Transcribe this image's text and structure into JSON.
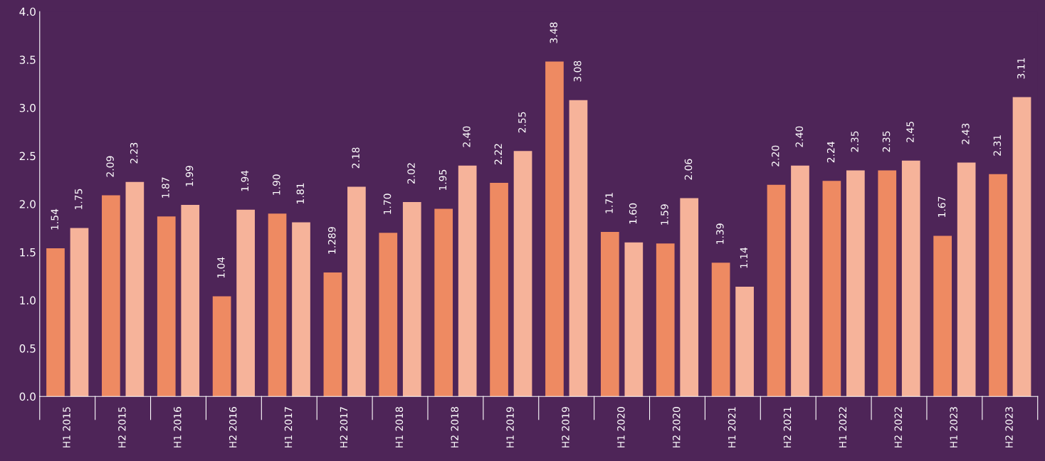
{
  "chart_data": {
    "type": "bar",
    "categories": [
      "H1 2015",
      "H2 2015",
      "H1 2016",
      "H2 2016",
      "H1 2017",
      "H2 2017",
      "H1 2018",
      "H2 2018",
      "H1 2019",
      "H2 2019",
      "H1 2020",
      "H2 2020",
      "H1 2021",
      "H2 2021",
      "H1 2022",
      "H2 2022",
      "H1 2023",
      "H2 2023"
    ],
    "series": [
      {
        "color": "#ee8a62",
        "values": [
          1.54,
          2.09,
          1.87,
          1.04,
          1.9,
          1.289,
          1.7,
          1.95,
          2.22,
          3.48,
          1.71,
          1.59,
          1.39,
          2.2,
          2.24,
          2.35,
          1.67,
          2.31
        ],
        "value_labels": [
          "1.54",
          "2.09",
          "1.87",
          "1.04",
          "1.90",
          "1.289",
          "1.70",
          "1.95",
          "2.22",
          "3.48",
          "1.71",
          "1.59",
          "1.39",
          "2.20",
          "2.24",
          "2.35",
          "1.67",
          "2.31"
        ]
      },
      {
        "color": "#f6b39a",
        "values": [
          1.75,
          2.23,
          1.99,
          1.94,
          1.81,
          2.18,
          2.02,
          2.4,
          2.55,
          3.08,
          1.6,
          2.06,
          1.14,
          2.4,
          2.35,
          2.45,
          2.43,
          3.11
        ],
        "value_labels": [
          "1.75",
          "2.23",
          "1.99",
          "1.94",
          "1.81",
          "2.18",
          "2.02",
          "2.40",
          "2.55",
          "3.08",
          "1.60",
          "2.06",
          "1.14",
          "2.40",
          "2.35",
          "2.45",
          "2.43",
          "3.11"
        ]
      }
    ],
    "ylim": [
      0,
      4
    ],
    "yticks": [
      {
        "value": 0,
        "label": "0.0"
      },
      {
        "value": 0.5,
        "label": "0.5"
      },
      {
        "value": 1,
        "label": "1.0"
      },
      {
        "value": 1.5,
        "label": "1.5"
      },
      {
        "value": 2,
        "label": "2.0"
      },
      {
        "value": 2.5,
        "label": "2.5"
      },
      {
        "value": 3,
        "label": "3.0"
      },
      {
        "value": 3.5,
        "label": "3.5"
      },
      {
        "value": 4,
        "label": "4.0"
      }
    ],
    "grid": false
  }
}
